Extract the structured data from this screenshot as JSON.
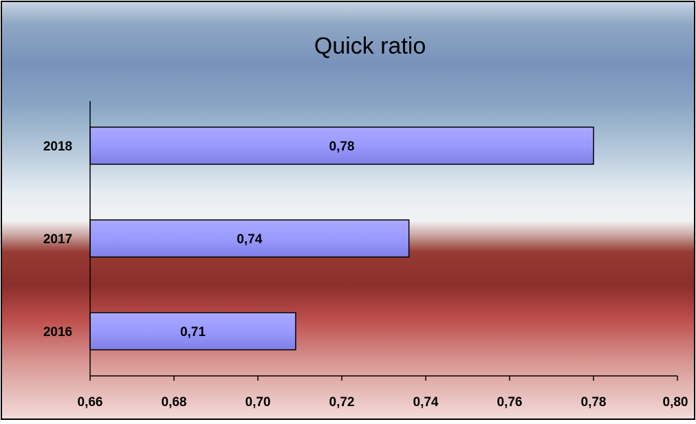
{
  "chart_data": {
    "type": "bar",
    "orientation": "horizontal",
    "title": "Quick ratio",
    "categories": [
      "2018",
      "2017",
      "2016"
    ],
    "values": [
      0.78,
      0.736,
      0.709
    ],
    "value_labels": [
      "0,78",
      "0,74",
      "0,71"
    ],
    "xlim": [
      0.66,
      0.8
    ],
    "x_ticks": [
      0.66,
      0.68,
      0.7,
      0.72,
      0.74,
      0.76,
      0.78,
      0.8
    ],
    "x_tick_labels": [
      "0,66",
      "0,68",
      "0,70",
      "0,72",
      "0,74",
      "0,76",
      "0,78",
      "0,80"
    ],
    "xlabel": "",
    "ylabel": "",
    "grid": false,
    "legend": "none",
    "colors": {
      "bar_fill": "#9999ff",
      "bar_stroke": "#000000",
      "text": "#000000"
    }
  }
}
